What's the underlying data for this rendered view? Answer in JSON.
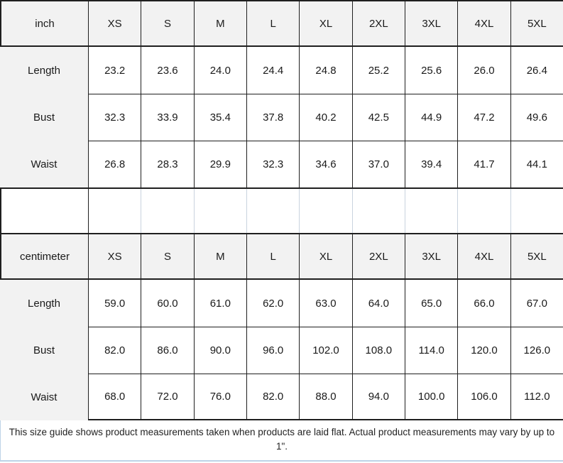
{
  "colors": {
    "dark": "#1f1f1f",
    "light": "#c9d3de",
    "hbg": "#f2f2f2",
    "fborder": "#bdd3e7",
    "text": "#1a1a1a"
  },
  "tables": [
    {
      "unit_label": "inch",
      "sizes": [
        "XS",
        "S",
        "M",
        "L",
        "XL",
        "2XL",
        "3XL",
        "4XL",
        "5XL"
      ],
      "rows": [
        {
          "label": "Length",
          "values": [
            "23.2",
            "23.6",
            "24.0",
            "24.4",
            "24.8",
            "25.2",
            "25.6",
            "26.0",
            "26.4"
          ]
        },
        {
          "label": "Bust",
          "values": [
            "32.3",
            "33.9",
            "35.4",
            "37.8",
            "40.2",
            "42.5",
            "44.9",
            "47.2",
            "49.6"
          ]
        },
        {
          "label": "Waist",
          "values": [
            "26.8",
            "28.3",
            "29.9",
            "32.3",
            "34.6",
            "37.0",
            "39.4",
            "41.7",
            "44.1"
          ]
        }
      ]
    },
    {
      "unit_label": "centimeter",
      "sizes": [
        "XS",
        "S",
        "M",
        "L",
        "XL",
        "2XL",
        "3XL",
        "4XL",
        "5XL"
      ],
      "rows": [
        {
          "label": "Length",
          "values": [
            "59.0",
            "60.0",
            "61.0",
            "62.0",
            "63.0",
            "64.0",
            "65.0",
            "66.0",
            "67.0"
          ]
        },
        {
          "label": "Bust",
          "values": [
            "82.0",
            "86.0",
            "90.0",
            "96.0",
            "102.0",
            "108.0",
            "114.0",
            "120.0",
            "126.0"
          ]
        },
        {
          "label": "Waist",
          "values": [
            "68.0",
            "72.0",
            "76.0",
            "82.0",
            "88.0",
            "94.0",
            "100.0",
            "106.0",
            "112.0"
          ]
        }
      ]
    }
  ],
  "footer": {
    "text": "This size guide shows product measurements taken when products are laid flat. Actual product measurements may vary by up to 1\"."
  }
}
